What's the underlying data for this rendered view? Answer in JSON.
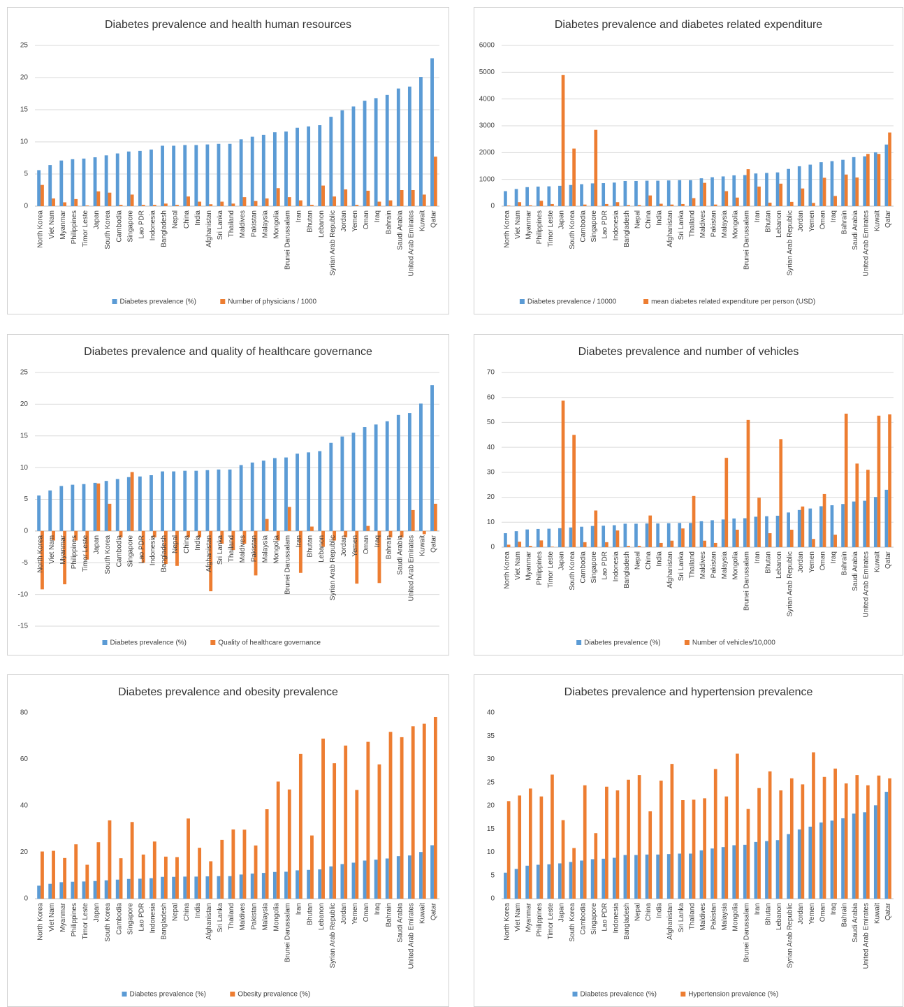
{
  "chart_data": [
    {
      "type": "bar",
      "title": "Diabetes prevalence and health human resources",
      "categories": [
        "North Korea",
        "Viet Nam",
        "Myanmar",
        "Philippines",
        "Timor Leste",
        "Japan",
        "South Korea",
        "Cambodia",
        "Singapore",
        "Lao PDR",
        "Indonesia",
        "Bangladesh",
        "Nepal",
        "China",
        "India",
        "Afghanistan",
        "Sri Lanka",
        "Thailand",
        "Maldives",
        "Pakistan",
        "Malaysia",
        "Mongolia",
        "Brunei Darussalam",
        "Iran",
        "Bhutan",
        "Lebanon",
        "Syrian Arab Republic",
        "Jordan",
        "Yemen",
        "Oman",
        "Iraq",
        "Bahrain",
        "Saudi Arabia",
        "United Arab Emirates",
        "Kuwait",
        "Qatar"
      ],
      "series": [
        {
          "name": "Diabetes prevalence (%)",
          "color": "#5b9bd5",
          "values": [
            5.6,
            6.4,
            7.1,
            7.3,
            7.4,
            7.6,
            7.9,
            8.2,
            8.5,
            8.6,
            8.8,
            9.4,
            9.4,
            9.5,
            9.5,
            9.6,
            9.7,
            9.7,
            10.4,
            10.8,
            11.1,
            11.5,
            11.6,
            12.2,
            12.4,
            12.6,
            13.9,
            14.9,
            15.5,
            16.4,
            16.8,
            17.3,
            18.3,
            18.6,
            20.1,
            23.0
          ]
        },
        {
          "name": "Number of physicians / 1000",
          "color": "#ed7d31",
          "values": [
            3.3,
            1.2,
            0.6,
            1.1,
            0.1,
            2.3,
            2.1,
            0.2,
            1.8,
            0.2,
            0.2,
            0.4,
            0.2,
            1.5,
            0.7,
            0.3,
            0.7,
            0.4,
            1.4,
            0.8,
            1.2,
            2.8,
            1.4,
            0.9,
            0.2,
            3.2,
            1.5,
            2.6,
            0.2,
            2.4,
            0.7,
            0.9,
            2.5,
            2.5,
            1.8,
            7.7
          ]
        }
      ],
      "ylim": [
        0,
        25
      ],
      "yticks": [
        0,
        5,
        10,
        15,
        20,
        25
      ],
      "grid": true
    },
    {
      "type": "bar",
      "title": "Diabetes prevalence and diabetes related expenditure",
      "categories": [
        "North Korea",
        "Viet Nam",
        "Myanmar",
        "Philippines",
        "Timor Leste",
        "Japan",
        "South Korea",
        "Cambodia",
        "Singapore",
        "Lao PDR",
        "Indonesia",
        "Bangladesh",
        "Nepal",
        "China",
        "India",
        "Afghanistan",
        "Sri Lanka",
        "Thailand",
        "Maldives",
        "Pakistan",
        "Malaysia",
        "Mongolia",
        "Brunei Darussalam",
        "Iran",
        "Bhutan",
        "Lebanon",
        "Syrian Arab Republic",
        "Jordan",
        "Yemen",
        "Oman",
        "Iraq",
        "Bahrain",
        "Saudi Arabia",
        "United Arab Emirates",
        "Kuwait",
        "Qatar"
      ],
      "series": [
        {
          "name": "Diabetes prevalence / 10000",
          "color": "#5b9bd5",
          "values": [
            560,
            640,
            710,
            730,
            740,
            760,
            790,
            820,
            850,
            860,
            880,
            940,
            940,
            950,
            950,
            960,
            970,
            970,
            1040,
            1080,
            1110,
            1150,
            1160,
            1220,
            1240,
            1260,
            1390,
            1490,
            1550,
            1640,
            1680,
            1730,
            1830,
            1860,
            2010,
            2300
          ]
        },
        {
          "name": "mean diabetes related expenditure per person (USD)",
          "color": "#ed7d31",
          "values": [
            20,
            150,
            30,
            200,
            80,
            4900,
            2150,
            60,
            2850,
            80,
            150,
            40,
            40,
            400,
            90,
            60,
            80,
            300,
            870,
            60,
            560,
            320,
            1380,
            730,
            130,
            840,
            160,
            660,
            120,
            1060,
            380,
            1180,
            1070,
            1950,
            1950,
            2750
          ]
        }
      ],
      "ylim": [
        0,
        6000
      ],
      "yticks": [
        0,
        1000,
        2000,
        3000,
        4000,
        5000,
        6000
      ],
      "grid": true
    },
    {
      "type": "bar",
      "title": "Diabetes prevalence and quality of healthcare governance",
      "categories": [
        "North Korea",
        "Viet Nam",
        "Myanmar",
        "Philippines",
        "Timor Leste",
        "Japan",
        "South Korea",
        "Cambodia",
        "Singapore",
        "Lao PDR",
        "Indonesia",
        "Bangladesh",
        "Nepal",
        "China",
        "India",
        "Afghanistan",
        "Sri Lanka",
        "Thailand",
        "Maldives",
        "Pakistan",
        "Malaysia",
        "Mongolia",
        "Brunei Darussalam",
        "Iran",
        "Bhutan",
        "Lebanon",
        "Syrian Arab Republic",
        "Jordan",
        "Yemen",
        "Oman",
        "Iraq",
        "Bahrain",
        "Saudi Arabia",
        "United Arab Emirates",
        "Kuwait",
        "Qatar"
      ],
      "series": [
        {
          "name": "Diabetes prevalence (%)",
          "color": "#5b9bd5",
          "values": [
            5.6,
            6.4,
            7.1,
            7.3,
            7.4,
            7.6,
            7.9,
            8.2,
            8.5,
            8.6,
            8.8,
            9.4,
            9.4,
            9.5,
            9.5,
            9.6,
            9.7,
            9.7,
            10.4,
            10.8,
            11.1,
            11.5,
            11.6,
            12.2,
            12.4,
            12.6,
            13.9,
            14.9,
            15.5,
            16.4,
            16.8,
            17.3,
            18.3,
            18.6,
            20.1,
            23.0
          ]
        },
        {
          "name": "Quality of healthcare governance",
          "color": "#ed7d31",
          "values": [
            -9.2,
            -1.5,
            -8.4,
            -1.5,
            -4.5,
            7.5,
            4.3,
            -1.0,
            9.3,
            -5.0,
            -1.0,
            -5.2,
            -5.5,
            -1.0,
            -1.0,
            -9.5,
            -2.0,
            -3.0,
            -2.0,
            -7.0,
            1.9,
            -1.5,
            3.8,
            -6.6,
            0.7,
            -2.5,
            -1.5,
            -1.0,
            -8.3,
            0.8,
            -8.2,
            -1.0,
            -1.0,
            3.3,
            -0.5,
            4.3
          ]
        }
      ],
      "ylim": [
        -15,
        25
      ],
      "yticks": [
        -15,
        -10,
        -5,
        0,
        5,
        10,
        15,
        20,
        25
      ],
      "grid": true
    },
    {
      "type": "bar",
      "title": "Diabetes prevalence and number of vehicles",
      "categories": [
        "North Korea",
        "Viet Nam",
        "Myanmar",
        "Philippines",
        "Timor Leste",
        "Japan",
        "South Korea",
        "Cambodia",
        "Singapore",
        "Lao PDR",
        "Indonesia",
        "Bangladesh",
        "Nepal",
        "China",
        "India",
        "Afghanistan",
        "Sri Lanka",
        "Thailand",
        "Maldives",
        "Pakistan",
        "Malaysia",
        "Mongolia",
        "Brunei Darussalam",
        "Iran",
        "Bhutan",
        "Lebanon",
        "Syrian Arab Republic",
        "Jordan",
        "Yemen",
        "Oman",
        "Iraq",
        "Bahrain",
        "Saudi Arabia",
        "United Arab Emirates",
        "Kuwait",
        "Qatar"
      ],
      "series": [
        {
          "name": "Diabetes prevalence (%)",
          "color": "#5b9bd5",
          "values": [
            5.6,
            6.4,
            7.1,
            7.3,
            7.4,
            7.6,
            7.9,
            8.2,
            8.5,
            8.6,
            8.8,
            9.4,
            9.4,
            9.5,
            9.5,
            9.6,
            9.7,
            9.7,
            10.4,
            10.8,
            11.1,
            11.5,
            11.6,
            12.2,
            12.4,
            12.6,
            13.9,
            14.9,
            15.5,
            16.4,
            16.8,
            17.3,
            18.3,
            18.6,
            20.1,
            23.0
          ]
        },
        {
          "name": "Number of vehicles/10,000",
          "color": "#ed7d31",
          "values": [
            1,
            2.2,
            0.5,
            2.7,
            0.2,
            58.7,
            45,
            2,
            14.7,
            2,
            6.7,
            0.5,
            0.5,
            12.7,
            1.7,
            2.6,
            7.5,
            20.5,
            2.6,
            1.7,
            35.8,
            7,
            51,
            19.8,
            5.6,
            43.3,
            7,
            16.3,
            3.3,
            21.3,
            5,
            53.5,
            33.5,
            31,
            52.7,
            53.2
          ]
        }
      ],
      "ylim": [
        0,
        70
      ],
      "yticks": [
        0,
        10,
        20,
        30,
        40,
        50,
        60,
        70
      ],
      "grid": true
    },
    {
      "type": "bar",
      "title": "Diabetes prevalence and obesity prevalence",
      "categories": [
        "North Korea",
        "Viet Nam",
        "Myanmar",
        "Philippines",
        "Timor Leste",
        "Japan",
        "South Korea",
        "Cambodia",
        "Singapore",
        "Lao PDR",
        "Indonesia",
        "Bangladesh",
        "Nepal",
        "China",
        "India",
        "Afghanistan",
        "Sri Lanka",
        "Thailand",
        "Maldives",
        "Pakistan",
        "Malaysia",
        "Mongolia",
        "Brunei Darussalam",
        "Iran",
        "Bhutan",
        "Lebanon",
        "Syrian Arab Republic",
        "Jordan",
        "Yemen",
        "Oman",
        "Iraq",
        "Bahrain",
        "Saudi Arabia",
        "United Arab Emirates",
        "Kuwait",
        "Qatar"
      ],
      "series": [
        {
          "name": "Diabetes prevalence (%)",
          "color": "#5b9bd5",
          "values": [
            5.6,
            6.4,
            7.1,
            7.3,
            7.4,
            7.6,
            7.9,
            8.2,
            8.5,
            8.6,
            8.8,
            9.4,
            9.4,
            9.5,
            9.5,
            9.6,
            9.7,
            9.7,
            10.4,
            10.8,
            11.1,
            11.5,
            11.6,
            12.2,
            12.4,
            12.6,
            13.9,
            14.9,
            15.5,
            16.4,
            16.8,
            17.3,
            18.3,
            18.6,
            20.1,
            23.0
          ]
        },
        {
          "name": "Obesity prevalence (%)",
          "color": "#ed7d31",
          "values": [
            20.3,
            20.6,
            17.5,
            23.4,
            14.6,
            24.3,
            33.7,
            17.4,
            33,
            19,
            24.6,
            18.1,
            17.9,
            34.5,
            21.9,
            16.1,
            25.3,
            29.8,
            29.7,
            22.9,
            38.5,
            50.4,
            47,
            62.3,
            27.2,
            68.9,
            58.3,
            65.9,
            46.8,
            67.5,
            57.8,
            71.8,
            69.5,
            74.2,
            75.3,
            78.2
          ]
        }
      ],
      "ylim": [
        0,
        80
      ],
      "yticks": [
        0,
        20,
        40,
        60,
        80
      ],
      "grid": false
    },
    {
      "type": "bar",
      "title": "Diabetes prevalence and hypertension prevalence",
      "categories": [
        "North Korea",
        "Viet Nam",
        "Myanmar",
        "Philippines",
        "Timor Leste",
        "Japan",
        "South Korea",
        "Cambodia",
        "Singapore",
        "Lao PDR",
        "Indonesia",
        "Bangladesh",
        "Nepal",
        "China",
        "India",
        "Afghanistan",
        "Sri Lanka",
        "Thailand",
        "Maldives",
        "Pakistan",
        "Malaysia",
        "Mongolia",
        "Brunei Darussalam",
        "Iran",
        "Bhutan",
        "Lebanon",
        "Syrian Arab Republic",
        "Jordan",
        "Yemen",
        "Oman",
        "Iraq",
        "Bahrain",
        "Saudi Arabia",
        "United Arab Emirates",
        "Kuwait",
        "Qatar"
      ],
      "series": [
        {
          "name": "Diabetes prevalence (%)",
          "color": "#5b9bd5",
          "values": [
            5.6,
            6.4,
            7.1,
            7.3,
            7.4,
            7.6,
            7.9,
            8.2,
            8.5,
            8.6,
            8.8,
            9.4,
            9.4,
            9.5,
            9.5,
            9.6,
            9.7,
            9.7,
            10.4,
            10.8,
            11.1,
            11.5,
            11.6,
            12.2,
            12.4,
            12.6,
            13.9,
            14.9,
            15.5,
            16.4,
            16.8,
            17.3,
            18.3,
            18.6,
            20.1,
            23.0
          ]
        },
        {
          "name": "Hypertension prevalence (%)",
          "color": "#ed7d31",
          "values": [
            21,
            22.2,
            23.7,
            22,
            26.7,
            16.9,
            10.9,
            24.4,
            14.1,
            24.1,
            23.3,
            25.6,
            26.6,
            18.8,
            25.4,
            29,
            21.2,
            21.3,
            21.6,
            27.9,
            22,
            31.2,
            19.3,
            23.8,
            27.4,
            23.3,
            25.9,
            24.6,
            31.5,
            26.2,
            28,
            24.8,
            26.6,
            24.4,
            26.5,
            25.9
          ]
        }
      ],
      "ylim": [
        0,
        40
      ],
      "yticks": [
        0,
        5,
        10,
        15,
        20,
        25,
        30,
        35,
        40
      ],
      "grid": false
    }
  ]
}
